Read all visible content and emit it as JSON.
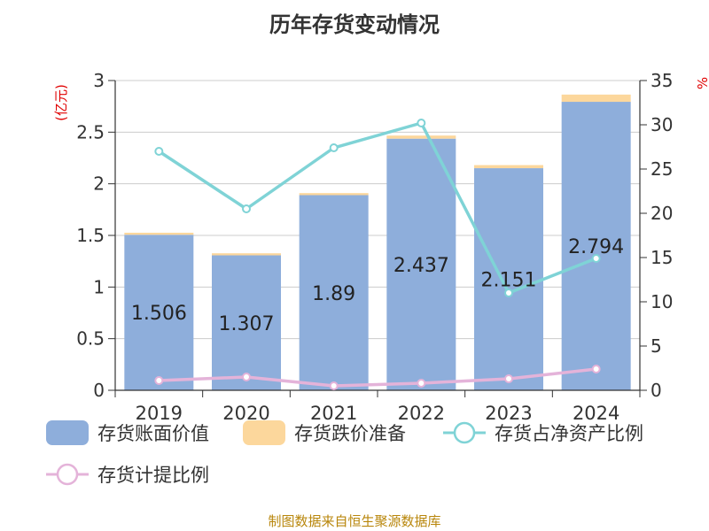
{
  "chart_data": {
    "type": "bar",
    "title": "历年存货变动情况",
    "categories": [
      "2019",
      "2020",
      "2021",
      "2022",
      "2023",
      "2024"
    ],
    "y_left_label": "(亿元)",
    "y_right_label": "%",
    "y_left_ticks": [
      "0",
      "0.5",
      "1",
      "1.5",
      "2",
      "2.5",
      "3"
    ],
    "y_right_ticks": [
      "0",
      "5",
      "10",
      "15",
      "20",
      "25",
      "30",
      "35"
    ],
    "ylim_left": [
      0,
      3
    ],
    "ylim_right": [
      0,
      35
    ],
    "series": [
      {
        "name": "存货账面价值",
        "kind": "bar",
        "axis": "left",
        "color": "#8eaedb",
        "values": [
          1.506,
          1.307,
          1.89,
          2.437,
          2.151,
          2.794
        ],
        "labels": [
          "1.506",
          "1.307",
          "1.89",
          "2.437",
          "2.151",
          "2.794"
        ]
      },
      {
        "name": "存货跌价准备",
        "kind": "bar-stacked",
        "axis": "left",
        "color": "#fcd79c",
        "values": [
          0.02,
          0.02,
          0.02,
          0.03,
          0.03,
          0.07
        ]
      },
      {
        "name": "存货占净资产比例",
        "kind": "line",
        "axis": "right",
        "color": "#7fd3d6",
        "values": [
          27.0,
          20.5,
          27.4,
          30.2,
          11.0,
          14.9
        ]
      },
      {
        "name": "存货计提比例",
        "kind": "line",
        "axis": "right",
        "color": "#e4b3d9",
        "values": [
          1.1,
          1.5,
          0.5,
          0.8,
          1.3,
          2.4
        ]
      }
    ],
    "grid": true,
    "legend": "bottom"
  },
  "footer": {
    "source": "制图数据来自恒生聚源数据库"
  }
}
